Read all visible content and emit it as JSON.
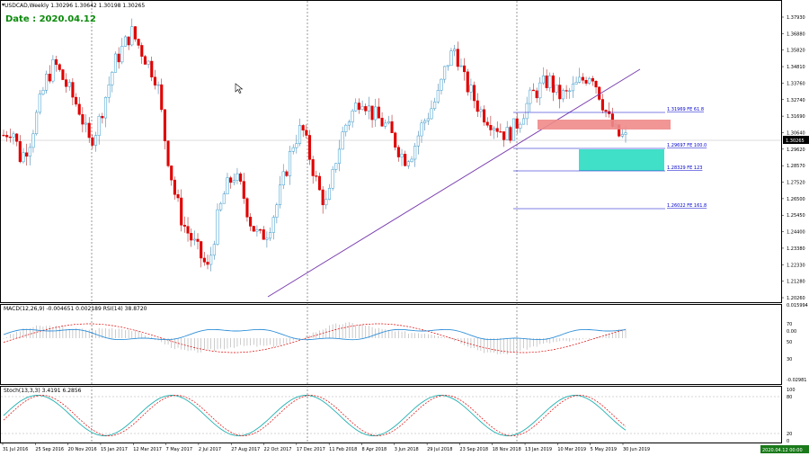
{
  "header": {
    "symbol_line": "USDCAD,Weekly  1.30296 1.30642 1.30198 1.30265",
    "date_label": "Date : 2020.04.12"
  },
  "price_axis": {
    "ticks": [
      "1.37930",
      "1.36880",
      "1.35820",
      "1.34810",
      "1.33760",
      "1.32740",
      "1.31690",
      "1.30640",
      "1.29620",
      "1.28570",
      "1.27520",
      "1.26500",
      "1.25450",
      "1.24400",
      "1.23380",
      "1.22330",
      "1.21280",
      "1.20260"
    ],
    "current_price": "1.30265"
  },
  "fibonacci": [
    {
      "label": "1.31969  FE 61.8"
    },
    {
      "label": "1.29697  FE 100.0"
    },
    {
      "label": "1.28329  FE 123"
    },
    {
      "label": "1.26022  FE 161.8"
    }
  ],
  "macd": {
    "label": "MACD(12,26,9) -0.004651 0.002189  RSI(14) 38.8720",
    "ticks": [
      "0.015994",
      "70",
      "0.00",
      "50",
      "30",
      "-0.02981"
    ]
  },
  "stoch": {
    "label": "Stoch(13,3,3) 3.4191 6.2856",
    "ticks": [
      "100",
      "80",
      "20",
      "0"
    ]
  },
  "time_axis": {
    "labels": [
      "31 Jul 2016",
      "25 Sep 2016",
      "20 Nov 2016",
      "15 Jan 2017",
      "12 Mar 2017",
      "7 May 2017",
      "2 Jul 2017",
      "27 Aug 2017",
      "22 Oct 2017",
      "17 Dec 2017",
      "11 Feb 2018",
      "8 Apr 2018",
      "3 Jun 2018",
      "29 Jul 2018",
      "23 Sep 2018",
      "18 Nov 2018",
      "13 Jan 2019",
      "10 Mar 2019",
      "5 May 2019",
      "30 Jun 2019"
    ],
    "current_time": "2020.04.12 00:00"
  },
  "colors": {
    "bull": "#3399cc",
    "bear": "#e00000",
    "trendline": "#7b3fb0",
    "resistance_zone": "#f08a8a",
    "target_zone": "#40e0c8",
    "macd_signal": "#e00000",
    "rsi_line": "#2f8fd8",
    "stoch_main": "#20b0b0",
    "stoch_signal": "#e00000"
  },
  "chart_data": {
    "type": "candlestick",
    "symbol": "USDCAD",
    "timeframe": "Weekly",
    "last_bar": {
      "open": 1.30296,
      "high": 1.30642,
      "low": 1.30198,
      "close": 1.30265
    },
    "ylim": [
      1.2026,
      1.3793
    ],
    "ohlc_close_path": [
      1.305,
      1.31,
      1.29,
      1.3,
      1.32,
      1.34,
      1.35,
      1.34,
      1.33,
      1.32,
      1.3,
      1.31,
      1.33,
      1.35,
      1.36,
      1.37,
      1.36,
      1.35,
      1.34,
      1.3,
      1.27,
      1.25,
      1.24,
      1.23,
      1.22,
      1.25,
      1.27,
      1.28,
      1.27,
      1.25,
      1.24,
      1.245,
      1.26,
      1.28,
      1.3,
      1.31,
      1.29,
      1.27,
      1.26,
      1.29,
      1.31,
      1.32,
      1.33,
      1.32,
      1.315,
      1.31,
      1.3,
      1.29,
      1.295,
      1.31,
      1.32,
      1.33,
      1.35,
      1.36,
      1.34,
      1.33,
      1.32,
      1.315,
      1.31,
      1.305,
      1.31,
      1.32,
      1.33,
      1.335,
      1.34,
      1.33,
      1.33,
      1.335,
      1.34,
      1.345,
      1.33,
      1.315,
      1.305,
      1.303
    ],
    "fib_levels": [
      1.31969,
      1.29697,
      1.28329,
      1.26022
    ]
  }
}
